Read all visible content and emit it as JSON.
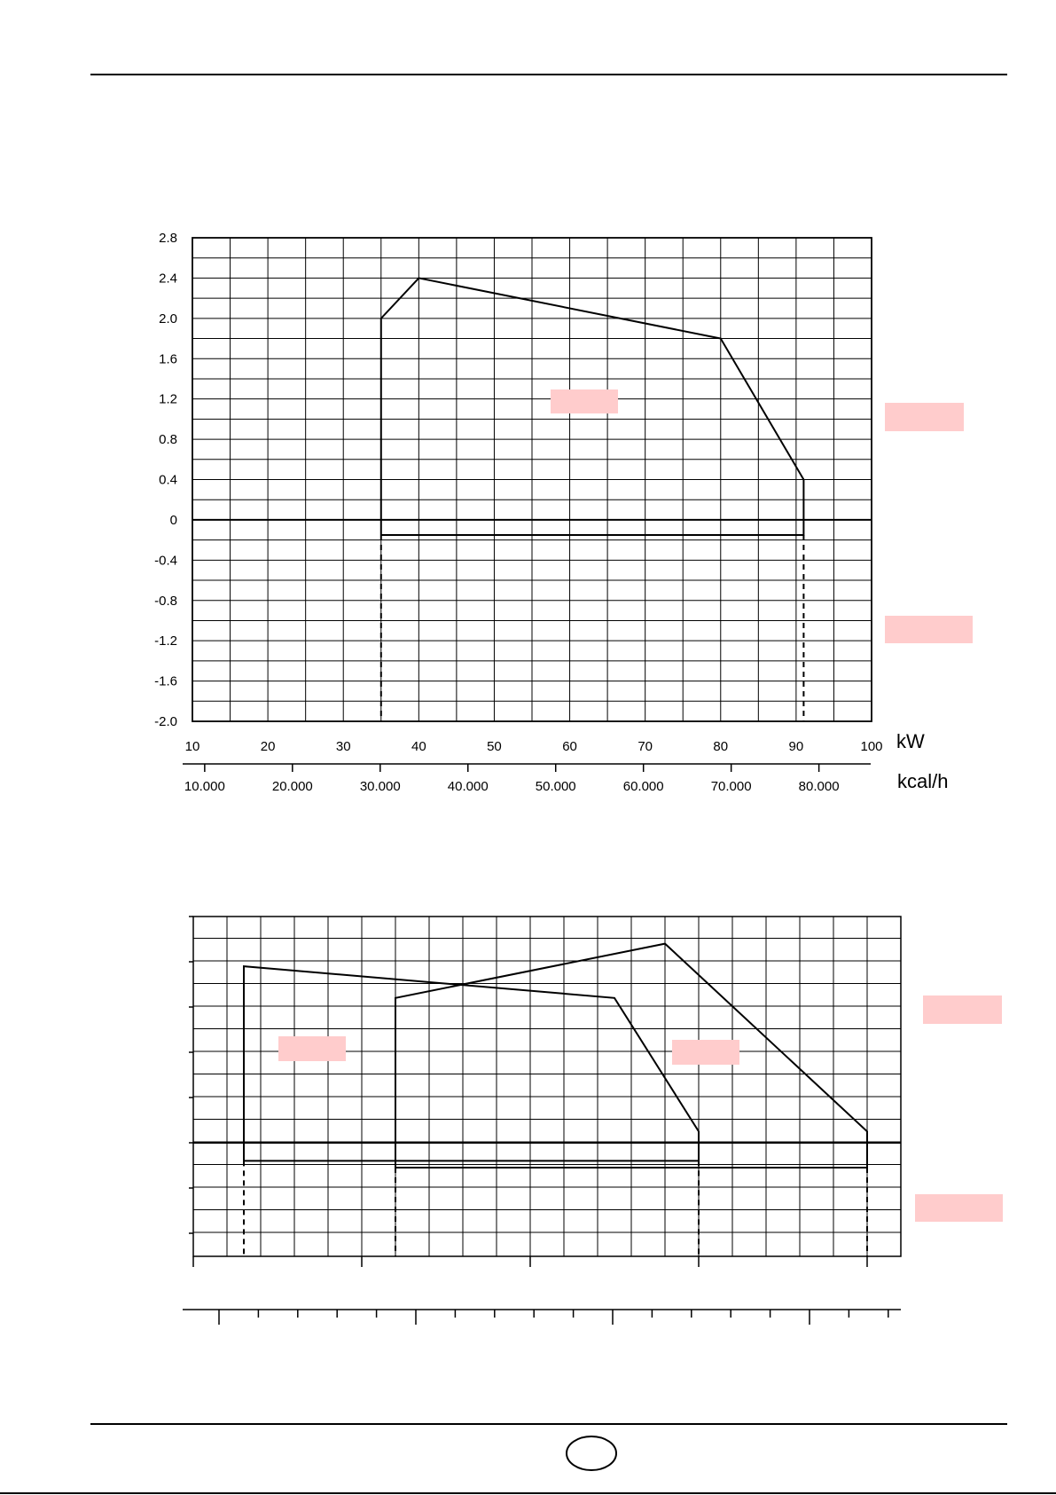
{
  "chart_data": [
    {
      "type": "line",
      "title": "",
      "xlabel": "kW",
      "x2label": "kcal/h",
      "ylabel": "",
      "xlim": [
        10,
        100
      ],
      "ylim": [
        -2.0,
        2.8
      ],
      "x_ticks": [
        "10",
        "20",
        "30",
        "40",
        "50",
        "60",
        "70",
        "80",
        "90",
        "100"
      ],
      "x2_ticks": [
        "10.000",
        "20.000",
        "30.000",
        "40.000",
        "50.000",
        "60.000",
        "70.000",
        "80.000"
      ],
      "y_ticks": [
        "2.8",
        "2.4",
        "2.0",
        "1.6",
        "1.2",
        "0.8",
        "0.4",
        "0",
        "-0.4",
        "-0.8",
        "-1.2",
        "-1.6",
        "-2.0"
      ],
      "grid": true,
      "series": [
        {
          "values": [
            {
              "x": 35,
              "y": -0.15
            },
            {
              "x": 35,
              "y": 2.0
            },
            {
              "x": 40,
              "y": 2.4
            },
            {
              "x": 80,
              "y": 1.8
            },
            {
              "x": 91,
              "y": 0.4
            },
            {
              "x": 91,
              "y": -0.15
            },
            {
              "x": 35,
              "y": -0.15
            }
          ]
        }
      ],
      "dashed_drops_at_x": [
        35,
        91
      ]
    },
    {
      "type": "line",
      "title": "",
      "xlabel": "",
      "ylabel": "",
      "x_ticks": [],
      "y_ticks": [],
      "grid": true,
      "series": [
        {
          "values": [
            {
              "x": 1.5,
              "y": -0.4
            },
            {
              "x": 1.5,
              "y": 3.9
            },
            {
              "x": 12.5,
              "y": 3.2
            },
            {
              "x": 15,
              "y": 0.25
            },
            {
              "x": 15,
              "y": -0.4
            },
            {
              "x": 1.5,
              "y": -0.4
            }
          ]
        },
        {
          "values": [
            {
              "x": 6,
              "y": -0.55
            },
            {
              "x": 6,
              "y": 3.2
            },
            {
              "x": 14,
              "y": 4.4
            },
            {
              "x": 20,
              "y": 0.25
            },
            {
              "x": 20,
              "y": -0.55
            },
            {
              "x": 6,
              "y": -0.55
            }
          ]
        }
      ],
      "dashed_drops_at_x": [
        1.5,
        6,
        15,
        20
      ]
    }
  ],
  "colors": {
    "line": "#000000",
    "grid": "#000000",
    "highlight": "#ffcccc"
  },
  "redaction_boxes": 6
}
